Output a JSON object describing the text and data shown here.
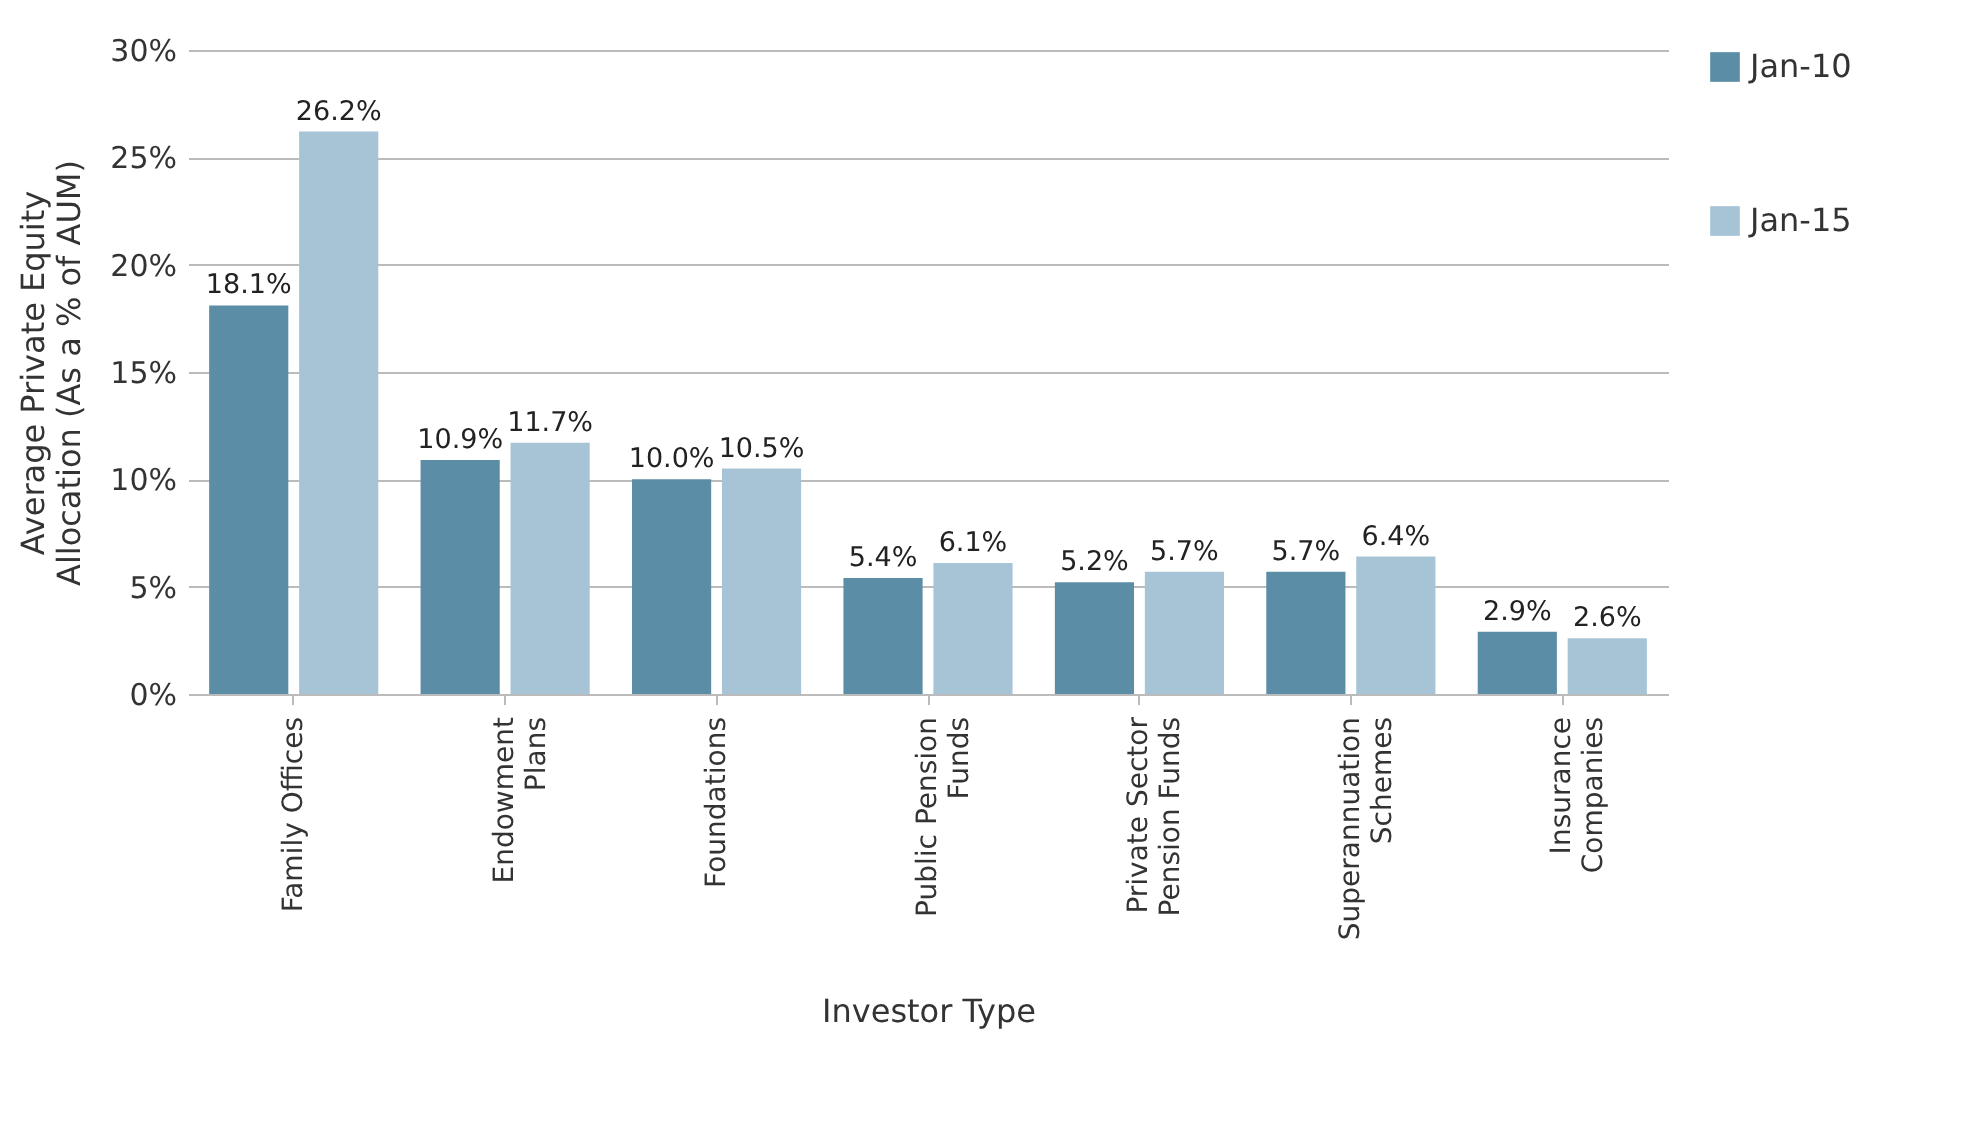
{
  "chart_data": {
    "type": "bar",
    "xlabel": "Investor Type",
    "ylabel": "Average Private Equity Allocation (As a % of AUM)",
    "categories": [
      "Family Offices",
      "Endowment Plans",
      "Foundations",
      "Public Pension Funds",
      "Private Sector Pension Funds",
      "Superannuation Schemes",
      "Insurance Companies"
    ],
    "series": [
      {
        "name": "Jan-10",
        "color": "#5b8ea6",
        "values": [
          18.1,
          10.9,
          10.0,
          5.4,
          5.2,
          5.7,
          2.9
        ],
        "value_labels": [
          "18.1%",
          "10.9%",
          "10.0%",
          "5.4%",
          "5.2%",
          "5.7%",
          "2.9%"
        ]
      },
      {
        "name": "Jan-15",
        "color": "#a6c4d6",
        "values": [
          26.2,
          11.7,
          10.5,
          6.1,
          5.7,
          6.4,
          2.6
        ],
        "value_labels": [
          "26.2%",
          "11.7%",
          "10.5%",
          "6.1%",
          "5.7%",
          "6.4%",
          "2.6%"
        ]
      }
    ],
    "ylim": [
      0,
      30
    ],
    "yticks": [
      {
        "value": 0,
        "label": "0%"
      },
      {
        "value": 5,
        "label": "5%"
      },
      {
        "value": 10,
        "label": "10%"
      },
      {
        "value": 15,
        "label": "15%"
      },
      {
        "value": 20,
        "label": "20%"
      },
      {
        "value": 25,
        "label": "25%"
      },
      {
        "value": 30,
        "label": "30%"
      }
    ],
    "grid": "y",
    "legend": "right"
  }
}
